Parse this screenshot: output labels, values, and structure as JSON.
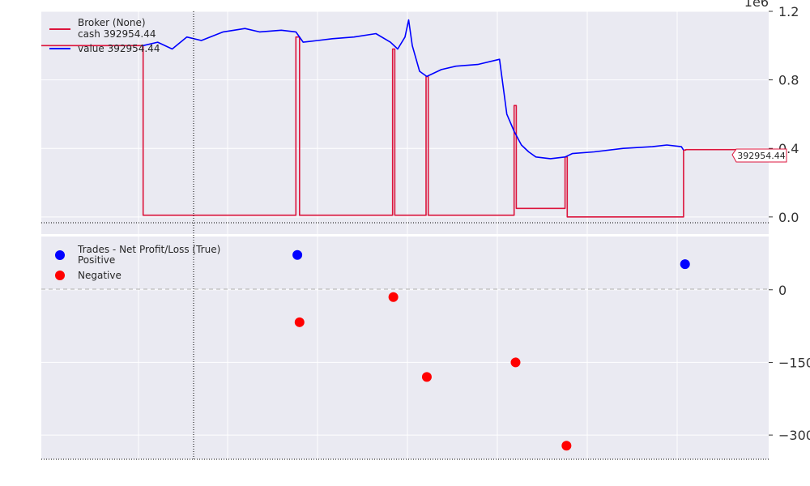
{
  "chart_data": [
    {
      "type": "line",
      "title": "",
      "axis_multiplier": "1e6",
      "ylim": [
        -0.1,
        1.2
      ],
      "yticks": [
        {
          "value": 0.0,
          "label": "0.0"
        },
        {
          "value": 0.4,
          "label": "0.4"
        },
        {
          "value": 0.8,
          "label": "0.8"
        },
        {
          "value": 1.2,
          "label": "1.2"
        }
      ],
      "legend": {
        "title": "Broker (None)",
        "placement": "top-left",
        "entries": [
          {
            "label": "cash 392954.44",
            "color": "#dc143c"
          },
          {
            "label": "value 392954.44",
            "color": "#0000ff"
          }
        ]
      },
      "last_value_label": "392954.44",
      "grid": true,
      "series": [
        {
          "name": "cash",
          "color": "#dc143c",
          "x": [
            0,
            0.14,
            0.14,
            0.35,
            0.35,
            0.355,
            0.355,
            0.358,
            0.358,
            0.483,
            0.483,
            0.486,
            0.486,
            0.529,
            0.529,
            0.532,
            0.532,
            0.65,
            0.65,
            0.653,
            0.653,
            0.72,
            0.72,
            0.723,
            0.723,
            0.883,
            0.883,
            0.886,
            0.886,
            1.0
          ],
          "y": [
            1.0,
            1.0,
            0.01,
            0.01,
            1.05,
            1.05,
            0.01,
            0.01,
            0.01,
            0.01,
            0.98,
            0.98,
            0.01,
            0.01,
            0.82,
            0.82,
            0.01,
            0.01,
            0.65,
            0.65,
            0.05,
            0.05,
            0.35,
            0.35,
            0.0,
            0.0,
            0.39,
            0.39,
            0.393,
            0.393
          ]
        },
        {
          "name": "value",
          "color": "#0000ff",
          "x": [
            0.14,
            0.16,
            0.18,
            0.2,
            0.22,
            0.25,
            0.28,
            0.3,
            0.33,
            0.35,
            0.36,
            0.38,
            0.4,
            0.43,
            0.46,
            0.48,
            0.49,
            0.5,
            0.505,
            0.51,
            0.52,
            0.53,
            0.55,
            0.57,
            0.6,
            0.63,
            0.64,
            0.645,
            0.65,
            0.66,
            0.67,
            0.68,
            0.7,
            0.72,
            0.73,
            0.76,
            0.8,
            0.84,
            0.86,
            0.88,
            0.883
          ],
          "y": [
            1.0,
            1.02,
            0.98,
            1.05,
            1.03,
            1.08,
            1.1,
            1.08,
            1.09,
            1.08,
            1.02,
            1.03,
            1.04,
            1.05,
            1.07,
            1.02,
            0.98,
            1.05,
            1.15,
            1.0,
            0.85,
            0.82,
            0.86,
            0.88,
            0.89,
            0.92,
            0.6,
            0.55,
            0.5,
            0.42,
            0.38,
            0.35,
            0.34,
            0.35,
            0.37,
            0.38,
            0.4,
            0.41,
            0.42,
            0.41,
            0.39
          ]
        }
      ]
    },
    {
      "type": "scatter",
      "title": "",
      "ylim": [
        -350,
        110
      ],
      "yticks": [
        {
          "value": 0,
          "label": "0"
        },
        {
          "value": -150,
          "label": "−150"
        },
        {
          "value": -300,
          "label": "−300"
        }
      ],
      "legend": {
        "title": "Trades - Net Profit/Loss (True)",
        "placement": "top-left",
        "entries": [
          {
            "label": "Positive",
            "color": "#0000ff"
          },
          {
            "label": "Negative",
            "color": "#ff0000"
          }
        ]
      },
      "grid": true,
      "series": [
        {
          "name": "Positive",
          "color": "#0000ff",
          "points": [
            {
              "x": 0.352,
              "y": 72
            },
            {
              "x": 0.885,
              "y": 53
            }
          ]
        },
        {
          "name": "Negative",
          "color": "#ff0000",
          "points": [
            {
              "x": 0.355,
              "y": -67
            },
            {
              "x": 0.484,
              "y": -15
            },
            {
              "x": 0.53,
              "y": -180
            },
            {
              "x": 0.652,
              "y": -150
            },
            {
              "x": 0.722,
              "y": -322
            }
          ]
        }
      ]
    }
  ]
}
